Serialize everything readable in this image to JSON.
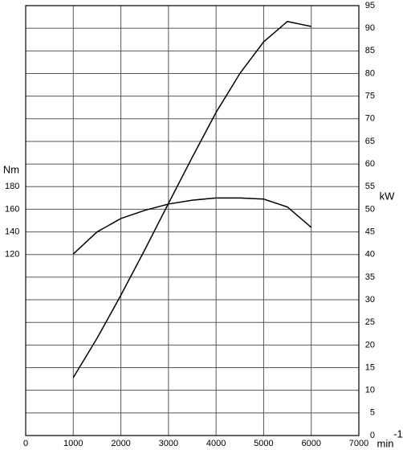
{
  "chart_data": {
    "type": "line",
    "x": [
      1000,
      1500,
      2000,
      2500,
      3000,
      3500,
      4000,
      4500,
      5000,
      5500,
      6000
    ],
    "series": [
      {
        "name": "Nm",
        "color": "#000000",
        "values": [
          120.5,
          140,
          151.8,
          159,
          164.6,
          168,
          170,
          170,
          169,
          162,
          144
        ]
      },
      {
        "name": "kW",
        "color": "#000000",
        "axis": "y2",
        "values": [
          12.8,
          21.5,
          31,
          41,
          51.3,
          61.5,
          71.4,
          80,
          87,
          91.5,
          90.4
        ]
      }
    ],
    "ylabel": "Nm",
    "y2label": "kW",
    "xlabel": "min",
    "xlabel_exponent": "-1",
    "xlim": [
      0,
      7000
    ],
    "xticks": [
      0,
      1000,
      2000,
      3000,
      4000,
      5000,
      6000,
      7000
    ],
    "ylim": [
      -40,
      340
    ],
    "yticks": [
      120,
      140,
      160,
      180
    ],
    "y2lim": [
      0,
      95
    ],
    "y2ticks": [
      0,
      5,
      10,
      15,
      20,
      25,
      30,
      35,
      40,
      45,
      50,
      55,
      60,
      65,
      70,
      75,
      80,
      85,
      90,
      95
    ],
    "grid": true
  }
}
